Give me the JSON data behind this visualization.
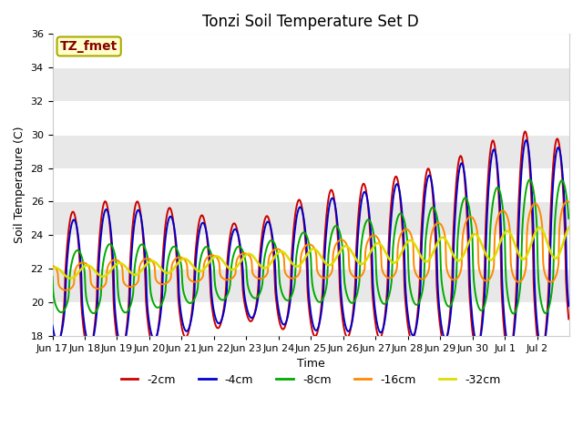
{
  "title": "Tonzi Soil Temperature Set D",
  "xlabel": "Time",
  "ylabel": "Soil Temperature (C)",
  "ylim": [
    18,
    36
  ],
  "label_box_text": "TZ_fmet",
  "label_box_color": "#ffffcc",
  "label_box_text_color": "#880000",
  "label_box_edge_color": "#aaaa00",
  "background_color": "#ffffff",
  "stripe_colors": [
    "#ffffff",
    "#e8e8e8"
  ],
  "series": [
    {
      "label": "-2cm",
      "color": "#cc0000",
      "lw": 1.4
    },
    {
      "label": "-4cm",
      "color": "#0000cc",
      "lw": 1.4
    },
    {
      "label": "-8cm",
      "color": "#00aa00",
      "lw": 1.4
    },
    {
      "label": "-16cm",
      "color": "#ff8800",
      "lw": 1.4
    },
    {
      "label": "-32cm",
      "color": "#dddd00",
      "lw": 1.8
    }
  ],
  "x_tick_labels": [
    "Jun 17",
    "Jun 18",
    "Jun 19",
    "Jun 20",
    "Jun 21",
    "Jun 22",
    "Jun 23",
    "Jun 24",
    "Jun 25",
    "Jun 26",
    "Jun 27",
    "Jun 28",
    "Jun 29",
    "Jun 30",
    "Jul 1",
    "Jul 2"
  ],
  "title_fontsize": 12,
  "axis_label_fontsize": 9,
  "tick_fontsize": 8
}
